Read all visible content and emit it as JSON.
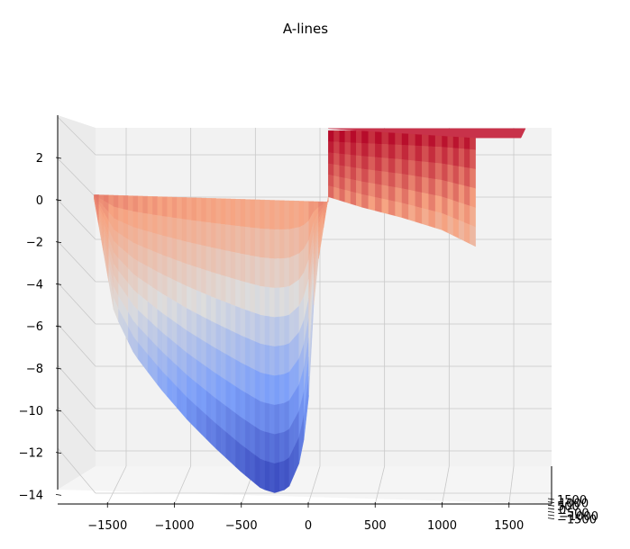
{
  "chart_data": {
    "type": "surface3d",
    "title": "A-lines",
    "colormap": "coolwarm",
    "x_ticks": [
      -1500,
      -1000,
      -500,
      0,
      500,
      1000,
      1500
    ],
    "z_ticks": [
      2,
      0,
      -2,
      -4,
      -6,
      -8,
      -10,
      -12,
      -14
    ],
    "y_ticks": [
      -1500,
      -1000,
      -500,
      0,
      500,
      1000,
      1500
    ],
    "y_tick_labels": [
      "1500",
      "1000",
      "500",
      "0",
      "−500",
      "−1000",
      "−1500"
    ],
    "x_tick_labels": [
      "−1500",
      "−1000",
      "−500",
      "0",
      "500",
      "1000",
      "1500"
    ],
    "z_tick_labels": [
      "2",
      "0",
      "−2",
      "−4",
      "−6",
      "−8",
      "−10",
      "−12",
      "−14"
    ],
    "xlim": [
      -1800,
      1800
    ],
    "zlim": [
      -14.8,
      3.3
    ],
    "grid": true,
    "profile": {
      "x": [
        -1600,
        -1450,
        -1300,
        -1100,
        -900,
        -700,
        -500,
        -350,
        -250,
        -150,
        -50,
        0,
        50,
        150
      ],
      "z_min": [
        0,
        -5.5,
        -7.5,
        -9.2,
        -10.7,
        -12.0,
        -13.2,
        -14.0,
        -14.2,
        -14.0,
        -12.5,
        -10.0,
        -4.0,
        0.1
      ]
    },
    "right_surface": {
      "x": [
        150,
        400,
        700,
        1000,
        1250
      ],
      "z_front": [
        0.1,
        -0.4,
        -0.9,
        -1.5,
        -2.3
      ],
      "z_top": [
        3.3,
        3.3,
        3.3,
        3.3,
        3.3
      ]
    }
  }
}
